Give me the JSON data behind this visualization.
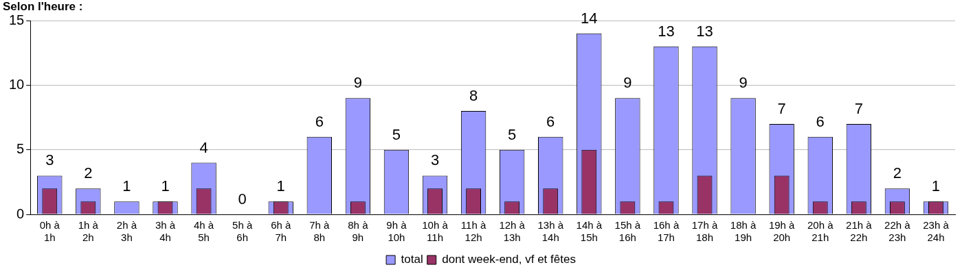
{
  "chart_data": {
    "type": "bar",
    "title": "Selon l'heure :",
    "categories": [
      "0h à 1h",
      "1h à 2h",
      "2h à 3h",
      "3h à 4h",
      "4h à 5h",
      "5h à 6h",
      "6h à 7h",
      "7h à 8h",
      "8h à 9h",
      "9h à 10h",
      "10h à 11h",
      "11h à 12h",
      "12h à 13h",
      "13h à 14h",
      "14h à 15h",
      "15h à 16h",
      "16h à 17h",
      "17h à 18h",
      "18h à 19h",
      "19h à 20h",
      "20h à 21h",
      "21h à 22h",
      "22h à 23h",
      "23h à 24h"
    ],
    "series": [
      {
        "name": "total",
        "color": "#9999ff",
        "values": [
          3,
          2,
          1,
          1,
          4,
          0,
          1,
          6,
          9,
          5,
          3,
          8,
          5,
          6,
          14,
          9,
          13,
          13,
          9,
          7,
          6,
          7,
          2,
          1
        ],
        "value_labels": [
          "3",
          "2",
          "1",
          "1",
          "4",
          "0",
          "1",
          "6",
          "9",
          "5",
          "3",
          "8",
          "5",
          "6",
          "14",
          "9",
          "13",
          "13",
          "9",
          "7",
          "6",
          "7",
          "2",
          "1"
        ]
      },
      {
        "name": "dont week-end, vf et fêtes",
        "color": "#993366",
        "values": [
          2,
          1,
          0,
          1,
          2,
          0,
          1,
          0,
          1,
          0,
          2,
          2,
          1,
          2,
          5,
          1,
          1,
          3,
          0,
          3,
          1,
          1,
          1,
          1
        ]
      }
    ],
    "ylim": [
      0,
      15
    ],
    "yticks": [
      0,
      5,
      10,
      15
    ],
    "grid": "y",
    "legend": "bottom"
  }
}
